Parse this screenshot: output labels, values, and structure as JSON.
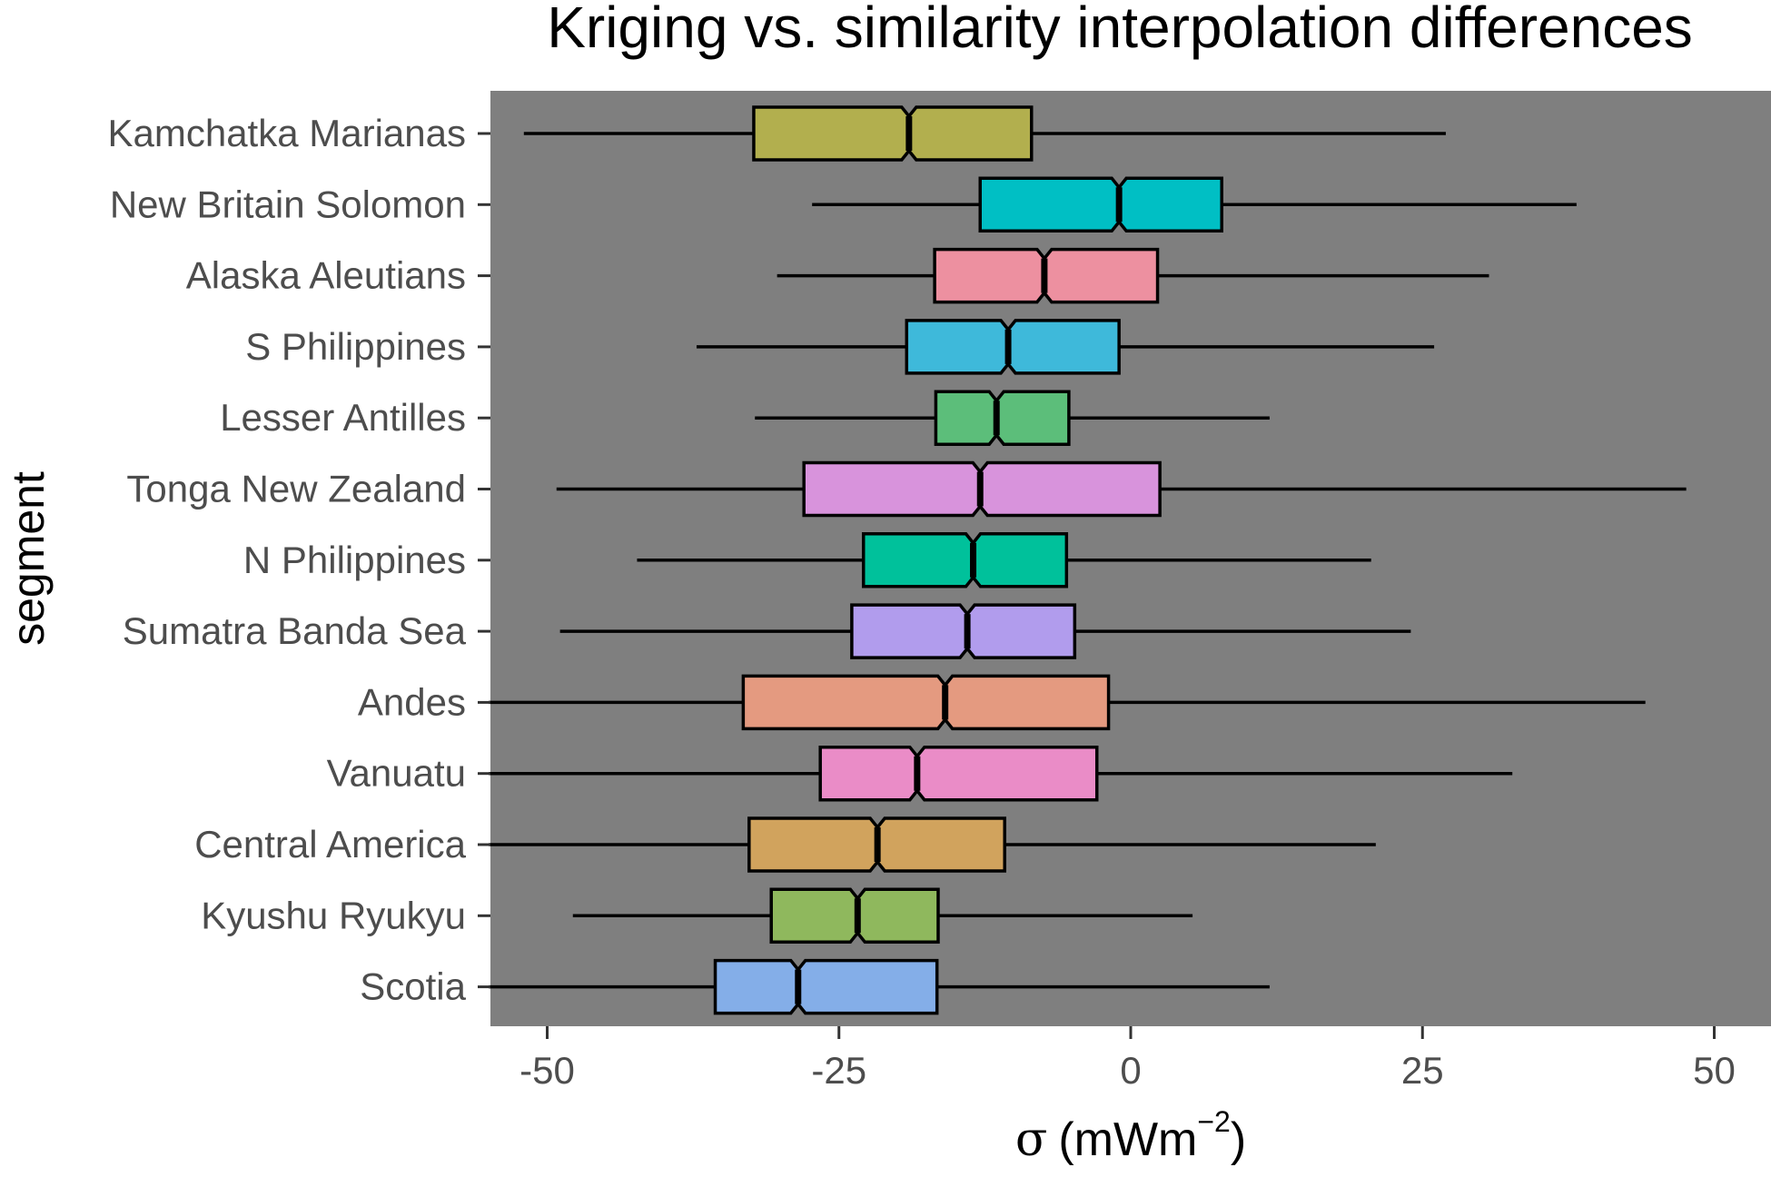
{
  "chart_data": {
    "type": "boxplot",
    "orientation": "horizontal",
    "notched": true,
    "title": "Kriging vs. similarity interpolation differences",
    "xlabel": "σ (mWm⁻²)",
    "xlabel_parts": {
      "symbol": "σ",
      "unit_base": "(mWm",
      "unit_exp": "−2",
      "unit_close": ")"
    },
    "ylabel": "segment",
    "xlim": [
      -55,
      55
    ],
    "xticks": [
      -50,
      -25,
      0,
      25,
      50
    ],
    "xtick_labels": [
      "-50",
      "-25",
      "0",
      "25",
      "50"
    ],
    "grid": false,
    "legend": "none",
    "panel_background": "#7f7f7f",
    "series": [
      {
        "category": "Kamchatka Marianas",
        "whisker_low": -52,
        "q1": -32.3,
        "median": -19.0,
        "q3": -8.5,
        "whisker_high": 27.0,
        "color": "#b2af4e"
      },
      {
        "category": "New Britain Solomon",
        "whisker_low": -27.3,
        "q1": -12.9,
        "median": -1.0,
        "q3": 7.8,
        "whisker_high": 38.2,
        "color": "#00bfc4"
      },
      {
        "category": "Alaska Aleutians",
        "whisker_low": -30.3,
        "q1": -16.8,
        "median": -7.4,
        "q3": 2.3,
        "whisker_high": 30.7,
        "color": "#ed90a0"
      },
      {
        "category": "S Philippines",
        "whisker_low": -37.2,
        "q1": -19.2,
        "median": -10.5,
        "q3": -1.0,
        "whisker_high": 26.0,
        "color": "#3eb9da"
      },
      {
        "category": "Lesser Antilles",
        "whisker_low": -32.2,
        "q1": -16.7,
        "median": -11.5,
        "q3": -5.3,
        "whisker_high": 11.9,
        "color": "#5cbe7a"
      },
      {
        "category": "Tonga New Zealand",
        "whisker_low": -49.2,
        "q1": -28.0,
        "median": -12.9,
        "q3": 2.5,
        "whisker_high": 47.6,
        "color": "#d893dc"
      },
      {
        "category": "N Philippines",
        "whisker_low": -42.3,
        "q1": -22.9,
        "median": -13.5,
        "q3": -5.5,
        "whisker_high": 20.6,
        "color": "#00c19b"
      },
      {
        "category": "Sumatra Banda Sea",
        "whisker_low": -48.9,
        "q1": -23.9,
        "median": -14.0,
        "q3": -4.8,
        "whisker_high": 24.0,
        "color": "#b19ced"
      },
      {
        "category": "Andes",
        "whisker_low": -55.0,
        "q1": -33.2,
        "median": -15.9,
        "q3": -1.9,
        "whisker_high": 44.1,
        "color": "#e49a80"
      },
      {
        "category": "Vanuatu",
        "whisker_low": -55.0,
        "q1": -26.6,
        "median": -18.3,
        "q3": -2.9,
        "whisker_high": 32.7,
        "color": "#ea8cc7"
      },
      {
        "category": "Central America",
        "whisker_low": -55.0,
        "q1": -32.7,
        "median": -21.7,
        "q3": -10.8,
        "whisker_high": 21.0,
        "color": "#d1a35d"
      },
      {
        "category": "Kyushu Ryukyu",
        "whisker_low": -47.8,
        "q1": -30.8,
        "median": -23.4,
        "q3": -16.5,
        "whisker_high": 5.3,
        "color": "#8fb85d"
      },
      {
        "category": "Scotia",
        "whisker_low": -55.0,
        "q1": -35.6,
        "median": -28.5,
        "q3": -16.6,
        "whisker_high": 11.9,
        "color": "#84aee8"
      }
    ]
  }
}
